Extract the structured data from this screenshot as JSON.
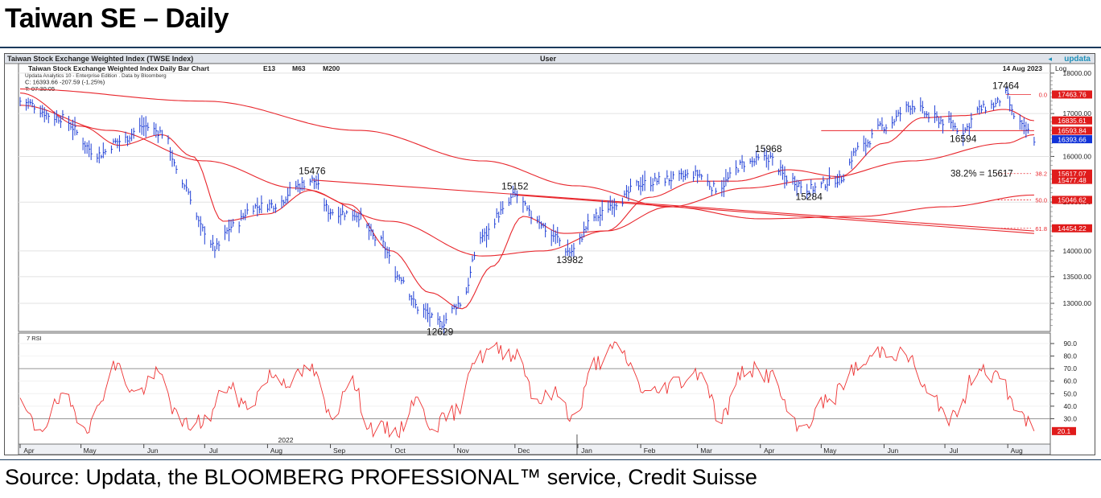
{
  "page": {
    "title": "Taiwan SE – Daily",
    "source": "Source: Updata, the BLOOMBERG PROFESSIONAL™ service, Credit Suisse"
  },
  "header": {
    "index_name": "Taiwan Stock Exchange Weighted Index (TWSE Index)",
    "user_label": "User",
    "brand": "updata",
    "subtitle": "Taiwan Stock Exchange Weighted Index Daily Bar Chart",
    "ma_labels": [
      "E13",
      "M63",
      "M200"
    ],
    "edition_line": "Updata Analytics 10 - Enterprise Edition . Data by Bloomberg",
    "close_line": "C: 16393.66 -207.59 (-1.25%)",
    "time_line": "T: 07:30:05",
    "date": "14 Aug 2023",
    "scale_label": "Log"
  },
  "colors": {
    "bars": "#1f3fd6",
    "averages": "#e8262c",
    "trendlines": "#e8262c",
    "rsi": "#ee3333",
    "grid": "#c8c8c8",
    "tag_red": "#e01b1b",
    "tag_blue": "#1233d8"
  },
  "chart_data": [
    {
      "type": "line",
      "title": "Taiwan Stock Exchange Weighted Index Daily Bar Chart",
      "scale": "log",
      "ylim": [
        12500,
        18000
      ],
      "y_ticks": [
        "18000.00",
        "17000.00",
        "16000.00",
        "15000.00",
        "14000.00",
        "13500.00",
        "13000.00"
      ],
      "y_tick_values": [
        18000,
        17000,
        16000,
        15000,
        14000,
        13500,
        13000
      ],
      "x_ticks": [
        "Apr",
        "May",
        "Jun",
        "Jul",
        "Aug",
        "Sep",
        "Oct",
        "Nov",
        "Dec",
        "Jan",
        "Feb",
        "Mar",
        "Apr",
        "May",
        "Jun",
        "Jul",
        "Aug"
      ],
      "x_tick_dates": [
        "2022-04-01",
        "2022-05-01",
        "2022-06-01",
        "2022-07-01",
        "2022-08-01",
        "2022-09-01",
        "2022-10-01",
        "2022-11-01",
        "2022-12-01",
        "2023-01-01",
        "2023-02-01",
        "2023-03-01",
        "2023-04-01",
        "2023-05-01",
        "2023-06-01",
        "2023-07-01",
        "2023-08-01"
      ],
      "year_label": "2022",
      "price_anchors": [
        {
          "date": "2022-04-01",
          "value": 17300
        },
        {
          "date": "2022-04-20",
          "value": 16900
        },
        {
          "date": "2022-05-10",
          "value": 16050
        },
        {
          "date": "2022-05-20",
          "value": 16350
        },
        {
          "date": "2022-06-01",
          "value": 16700
        },
        {
          "date": "2022-06-10",
          "value": 16550
        },
        {
          "date": "2022-06-20",
          "value": 15400
        },
        {
          "date": "2022-07-01",
          "value": 14400
        },
        {
          "date": "2022-07-06",
          "value": 14050
        },
        {
          "date": "2022-07-15",
          "value": 14500
        },
        {
          "date": "2022-07-25",
          "value": 14900
        },
        {
          "date": "2022-08-05",
          "value": 14950
        },
        {
          "date": "2022-08-16",
          "value": 15350
        },
        {
          "date": "2022-08-23",
          "value": 15476
        },
        {
          "date": "2022-09-01",
          "value": 14800
        },
        {
          "date": "2022-09-13",
          "value": 14750
        },
        {
          "date": "2022-09-25",
          "value": 14200
        },
        {
          "date": "2022-10-05",
          "value": 13500
        },
        {
          "date": "2022-10-15",
          "value": 12900
        },
        {
          "date": "2022-10-25",
          "value": 12629
        },
        {
          "date": "2022-11-04",
          "value": 13000
        },
        {
          "date": "2022-11-15",
          "value": 14300
        },
        {
          "date": "2022-11-25",
          "value": 14800
        },
        {
          "date": "2022-12-01",
          "value": 15152
        },
        {
          "date": "2022-12-10",
          "value": 14700
        },
        {
          "date": "2022-12-20",
          "value": 14300
        },
        {
          "date": "2022-12-28",
          "value": 13982
        },
        {
          "date": "2023-01-10",
          "value": 14700
        },
        {
          "date": "2023-01-20",
          "value": 15000
        },
        {
          "date": "2023-02-01",
          "value": 15400
        },
        {
          "date": "2023-02-15",
          "value": 15500
        },
        {
          "date": "2023-03-01",
          "value": 15600
        },
        {
          "date": "2023-03-10",
          "value": 15300
        },
        {
          "date": "2023-03-25",
          "value": 15850
        },
        {
          "date": "2023-04-05",
          "value": 15968
        },
        {
          "date": "2023-04-15",
          "value": 15500
        },
        {
          "date": "2023-04-25",
          "value": 15284
        },
        {
          "date": "2023-05-10",
          "value": 15500
        },
        {
          "date": "2023-05-20",
          "value": 16200
        },
        {
          "date": "2023-06-01",
          "value": 16700
        },
        {
          "date": "2023-06-15",
          "value": 17200
        },
        {
          "date": "2023-06-25",
          "value": 16900
        },
        {
          "date": "2023-07-01",
          "value": 16800
        },
        {
          "date": "2023-07-10",
          "value": 16594
        },
        {
          "date": "2023-07-18",
          "value": 17100
        },
        {
          "date": "2023-07-25",
          "value": 17200
        },
        {
          "date": "2023-07-31",
          "value": 17464
        },
        {
          "date": "2023-08-04",
          "value": 16950
        },
        {
          "date": "2023-08-10",
          "value": 16600
        },
        {
          "date": "2023-08-14",
          "value": 16393.66
        }
      ],
      "moving_averages": [
        {
          "name": "E13",
          "points": [
            [
              "2022-04-01",
              17500
            ],
            [
              "2022-05-01",
              16700
            ],
            [
              "2022-05-20",
              16250
            ],
            [
              "2022-06-10",
              16500
            ],
            [
              "2022-06-25",
              16000
            ],
            [
              "2022-07-10",
              14600
            ],
            [
              "2022-08-01",
              14750
            ],
            [
              "2022-08-22",
              15250
            ],
            [
              "2022-09-10",
              14950
            ],
            [
              "2022-10-01",
              14000
            ],
            [
              "2022-10-20",
              13200
            ],
            [
              "2022-11-05",
              12900
            ],
            [
              "2022-11-20",
              13700
            ],
            [
              "2022-12-05",
              14700
            ],
            [
              "2022-12-25",
              14350
            ],
            [
              "2023-01-15",
              14400
            ],
            [
              "2023-02-05",
              15100
            ],
            [
              "2023-03-01",
              15450
            ],
            [
              "2023-03-20",
              15450
            ],
            [
              "2023-04-15",
              15700
            ],
            [
              "2023-05-10",
              15550
            ],
            [
              "2023-06-01",
              16300
            ],
            [
              "2023-06-20",
              16900
            ],
            [
              "2023-07-10",
              16950
            ],
            [
              "2023-07-31",
              17100
            ],
            [
              "2023-08-14",
              16830
            ]
          ]
        },
        {
          "name": "M63",
          "points": [
            [
              "2022-04-01",
              17200
            ],
            [
              "2022-05-15",
              16600
            ],
            [
              "2022-07-01",
              15900
            ],
            [
              "2022-08-15",
              15300
            ],
            [
              "2022-09-30",
              14600
            ],
            [
              "2022-11-15",
              13900
            ],
            [
              "2022-12-15",
              14000
            ],
            [
              "2023-01-15",
              14400
            ],
            [
              "2023-02-15",
              14900
            ],
            [
              "2023-03-25",
              15300
            ],
            [
              "2023-05-01",
              15500
            ],
            [
              "2023-06-15",
              15900
            ],
            [
              "2023-07-31",
              16300
            ],
            [
              "2023-08-14",
              16500
            ]
          ]
        },
        {
          "name": "M200",
          "points": [
            [
              "2022-04-01",
              17600
            ],
            [
              "2022-07-01",
              17300
            ],
            [
              "2022-09-15",
              16600
            ],
            [
              "2022-11-15",
              15900
            ],
            [
              "2022-12-31",
              15350
            ],
            [
              "2023-02-15",
              14900
            ],
            [
              "2023-04-01",
              14650
            ],
            [
              "2023-05-20",
              14700
            ],
            [
              "2023-07-01",
              14900
            ],
            [
              "2023-08-14",
              15150
            ]
          ]
        }
      ],
      "trendlines": [
        {
          "from": [
            "2022-08-23",
            15476
          ],
          "to": [
            "2023-08-14",
            14400
          ]
        },
        {
          "from": [
            "2022-12-01",
            15152
          ],
          "to": [
            "2023-08-14",
            14350
          ]
        },
        {
          "from": [
            "2023-05-01",
            16594
          ],
          "to": [
            "2023-08-14",
            16594
          ]
        }
      ],
      "peak_labels": [
        {
          "text": "15476",
          "date": "2022-08-23",
          "value": 15476
        },
        {
          "text": "12629",
          "date": "2022-10-25",
          "value": 12629
        },
        {
          "text": "15152",
          "date": "2022-12-01",
          "value": 15152
        },
        {
          "text": "13982",
          "date": "2022-12-28",
          "value": 13982
        },
        {
          "text": "15968",
          "date": "2023-04-05",
          "value": 15968
        },
        {
          "text": "15284",
          "date": "2023-04-25",
          "value": 15284
        },
        {
          "text": "16594",
          "date": "2023-07-10",
          "value": 16594
        },
        {
          "text": "17464",
          "date": "2023-07-31",
          "value": 17464
        }
      ],
      "fib_levels": [
        {
          "label": "0.0",
          "value": 17463.76
        },
        {
          "label": "38.2",
          "value": 15617.07
        },
        {
          "label": "50.0",
          "value": 15046.62
        },
        {
          "label": "61.8",
          "value": 14454.22
        }
      ],
      "fib_annotation": "38.2% = 15617",
      "price_tags": [
        {
          "text": "17463.76",
          "value": 17463.76,
          "color": "red"
        },
        {
          "text": "16835.61",
          "value": 16835.61,
          "color": "red"
        },
        {
          "text": "16593.84",
          "value": 16593.84,
          "color": "red"
        },
        {
          "text": "16393.66",
          "value": 16393.66,
          "color": "blue"
        },
        {
          "text": "15617.07",
          "value": 15617.07,
          "color": "red"
        },
        {
          "text": "15477.48",
          "value": 15477.48,
          "color": "red"
        },
        {
          "text": "15046.62",
          "value": 15046.62,
          "color": "red"
        },
        {
          "text": "14454.22",
          "value": 14454.22,
          "color": "red"
        }
      ]
    },
    {
      "type": "line",
      "title": "7 RSI",
      "ylim": [
        10,
        95
      ],
      "y_ticks": [
        "90.0",
        "80.0",
        "70.0",
        "60.0",
        "50.0",
        "40.0",
        "30.0"
      ],
      "y_tick_values": [
        90,
        80,
        70,
        60,
        50,
        40,
        30
      ],
      "reference_lines": [
        70,
        30
      ],
      "last_value_tag": "20.1",
      "rsi_anchors": [
        {
          "date": "2022-04-01",
          "value": 40
        },
        {
          "date": "2022-04-10",
          "value": 22
        },
        {
          "date": "2022-04-22",
          "value": 45
        },
        {
          "date": "2022-05-05",
          "value": 25
        },
        {
          "date": "2022-05-18",
          "value": 72
        },
        {
          "date": "2022-05-28",
          "value": 50
        },
        {
          "date": "2022-06-08",
          "value": 65
        },
        {
          "date": "2022-06-20",
          "value": 25
        },
        {
          "date": "2022-07-01",
          "value": 28
        },
        {
          "date": "2022-07-12",
          "value": 55
        },
        {
          "date": "2022-07-22",
          "value": 40
        },
        {
          "date": "2022-08-03",
          "value": 65
        },
        {
          "date": "2022-08-12",
          "value": 60
        },
        {
          "date": "2022-08-22",
          "value": 70
        },
        {
          "date": "2022-09-02",
          "value": 30
        },
        {
          "date": "2022-09-10",
          "value": 62
        },
        {
          "date": "2022-09-22",
          "value": 22
        },
        {
          "date": "2022-10-05",
          "value": 20
        },
        {
          "date": "2022-10-12",
          "value": 45
        },
        {
          "date": "2022-10-22",
          "value": 25
        },
        {
          "date": "2022-11-02",
          "value": 35
        },
        {
          "date": "2022-11-10",
          "value": 75
        },
        {
          "date": "2022-11-20",
          "value": 85
        },
        {
          "date": "2022-12-02",
          "value": 82
        },
        {
          "date": "2022-12-12",
          "value": 45
        },
        {
          "date": "2022-12-22",
          "value": 50
        },
        {
          "date": "2022-12-30",
          "value": 30
        },
        {
          "date": "2023-01-10",
          "value": 75
        },
        {
          "date": "2023-01-20",
          "value": 86
        },
        {
          "date": "2023-02-05",
          "value": 50
        },
        {
          "date": "2023-02-20",
          "value": 60
        },
        {
          "date": "2023-03-03",
          "value": 68
        },
        {
          "date": "2023-03-12",
          "value": 30
        },
        {
          "date": "2023-03-25",
          "value": 70
        },
        {
          "date": "2023-04-05",
          "value": 65
        },
        {
          "date": "2023-04-20",
          "value": 22
        },
        {
          "date": "2023-05-05",
          "value": 45
        },
        {
          "date": "2023-05-18",
          "value": 70
        },
        {
          "date": "2023-06-01",
          "value": 85
        },
        {
          "date": "2023-06-12",
          "value": 80
        },
        {
          "date": "2023-06-25",
          "value": 45
        },
        {
          "date": "2023-07-05",
          "value": 30
        },
        {
          "date": "2023-07-18",
          "value": 72
        },
        {
          "date": "2023-07-28",
          "value": 62
        },
        {
          "date": "2023-08-05",
          "value": 40
        },
        {
          "date": "2023-08-14",
          "value": 20.1
        }
      ]
    }
  ]
}
